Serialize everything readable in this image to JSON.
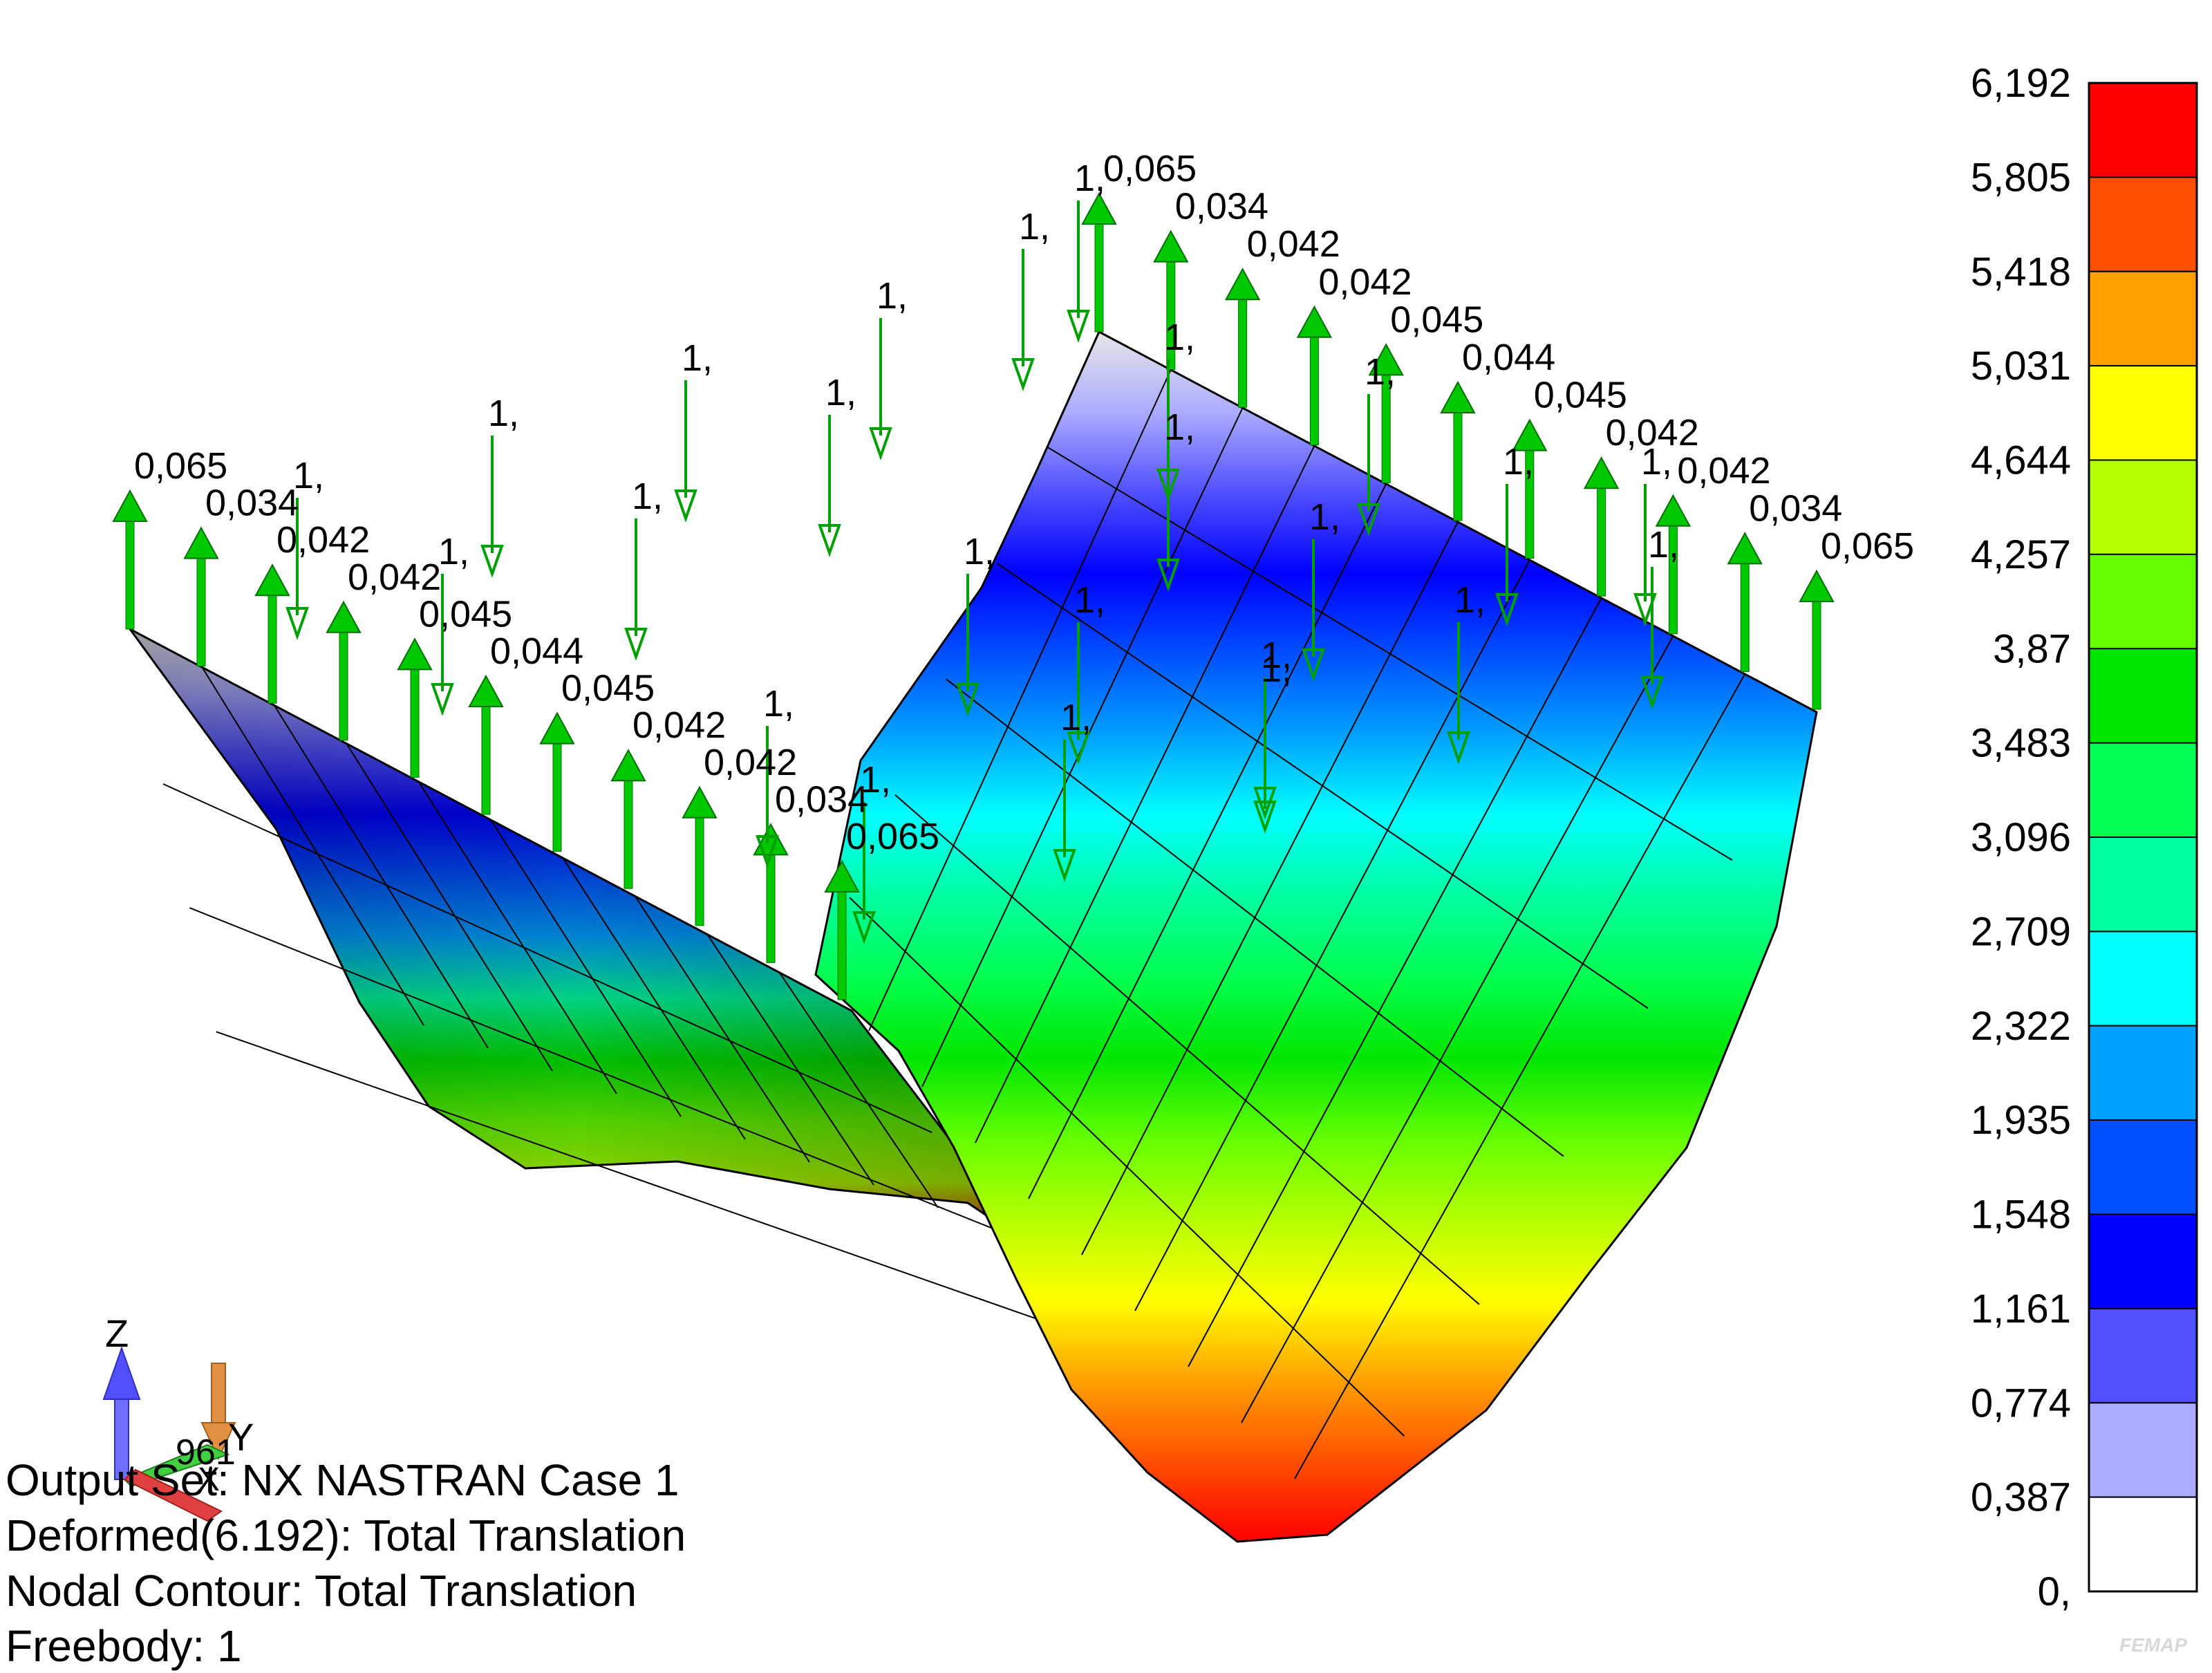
{
  "legend": {
    "labels": [
      "6,192",
      "5,805",
      "5,418",
      "5,031",
      "4,644",
      "4,257",
      "3,87",
      "3,483",
      "3,096",
      "2,709",
      "2,322",
      "1,935",
      "1,548",
      "1,161",
      "0,774",
      "0,387",
      "0,"
    ],
    "colors": [
      "#ff0000",
      "#ff5000",
      "#ffa000",
      "#ffff00",
      "#b4ff00",
      "#64ff00",
      "#00e600",
      "#00ff50",
      "#00ffa0",
      "#00ffff",
      "#00a0ff",
      "#0050ff",
      "#0000ff",
      "#5050ff",
      "#aaaaff",
      "#ffffff"
    ]
  },
  "model": {
    "left_panel_gradient": [
      "#e6e6e6",
      "#aaaaff",
      "#5050ff",
      "#0000ff",
      "#0050ff",
      "#00a0ff",
      "#00ffa0",
      "#00e600",
      "#64ff00",
      "#b4ff00",
      "#ff0000"
    ],
    "right_panel_gradient": [
      "#e6e6e6",
      "#aaaaff",
      "#5050ff",
      "#0000ff",
      "#0050ff",
      "#00a0ff",
      "#00ffff",
      "#00ffa0",
      "#00ff50",
      "#00e600",
      "#64ff00",
      "#b4ff00",
      "#ffff00",
      "#ffa000",
      "#ff5000",
      "#ff0000"
    ],
    "load_arrow_color": "#00c800",
    "force_label": "1,",
    "edge_values": [
      "0,065",
      "0,034",
      "0,042",
      "0,042",
      "0,045",
      "0,044",
      "0,045",
      "0,042",
      "0,042",
      "0,034",
      "0,065"
    ]
  },
  "axes": {
    "z": "Z",
    "y": "Y",
    "x": "X",
    "overlap_text": "961"
  },
  "status": {
    "output_set": "Output Set: NX NASTRAN Case 1",
    "deformed": "Deformed(6.192): Total Translation",
    "contour": "Nodal Contour: Total Translation",
    "freebody": "Freebody: 1"
  },
  "brand": "FEMAP"
}
